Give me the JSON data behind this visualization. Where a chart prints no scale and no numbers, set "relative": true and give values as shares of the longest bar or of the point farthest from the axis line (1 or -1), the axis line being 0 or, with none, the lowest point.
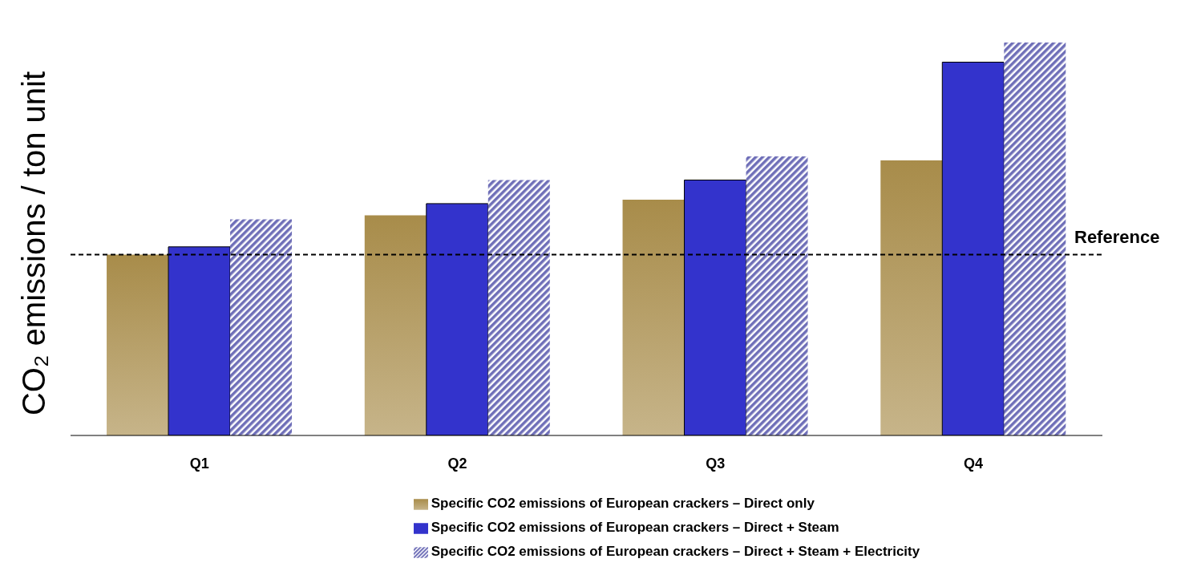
{
  "chart_data": {
    "type": "bar",
    "relative": true,
    "ylabel": "CO₂ emissions / ton unit",
    "categories": [
      "Q1",
      "Q2",
      "Q3",
      "Q4"
    ],
    "series": [
      {
        "name": "Specific CO2 emissions of European crackers – Direct only",
        "color": "#a88c4a",
        "values": [
          0.46,
          0.56,
          0.6,
          0.7
        ]
      },
      {
        "name": "Specific CO2 emissions of European crackers – Direct + Steam",
        "color": "#3333cc",
        "values": [
          0.48,
          0.59,
          0.65,
          0.95
        ]
      },
      {
        "name": "Specific CO2 emissions of European crackers – Direct + Steam + Electricity",
        "color": "#6f6fb8",
        "values": [
          0.55,
          0.65,
          0.71,
          1
        ]
      }
    ],
    "ref_lines": [
      {
        "axis": "y",
        "value": 0.46,
        "label": "Reference",
        "line_style": "dashed",
        "color": "#000000"
      }
    ],
    "legend": "bottom",
    "grid": false
  }
}
